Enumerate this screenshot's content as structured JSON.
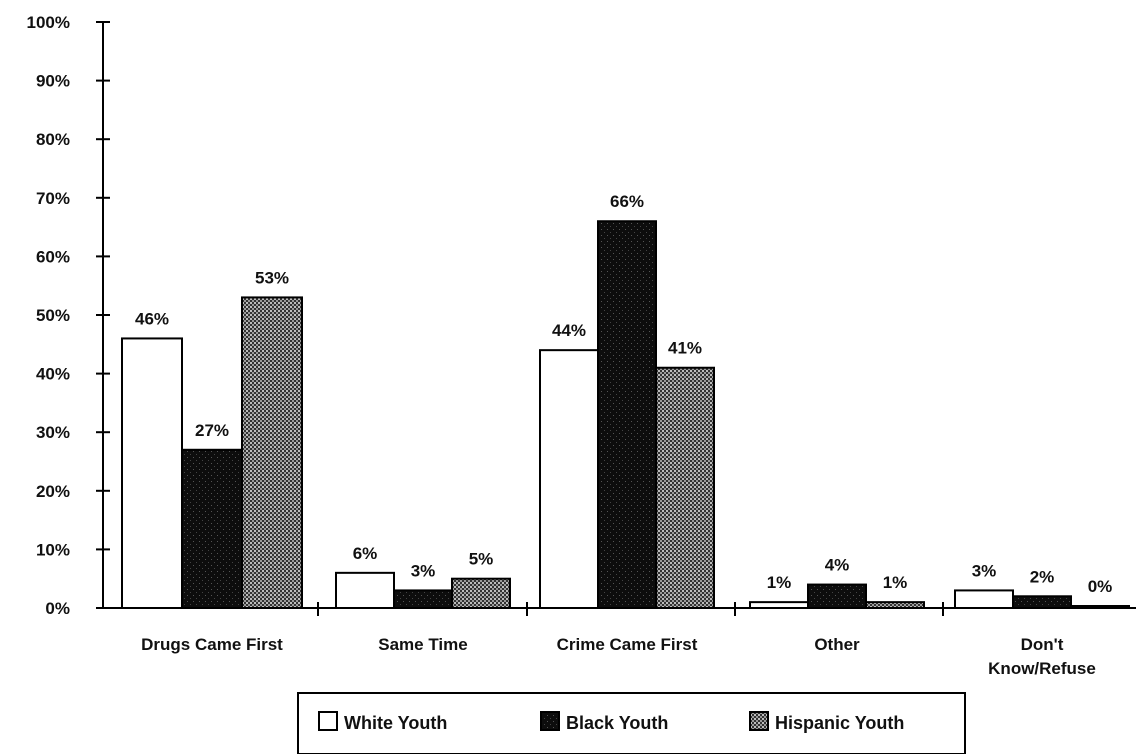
{
  "chart_data": {
    "type": "bar",
    "categories": [
      "Drugs Came First",
      "Same Time",
      "Crime Came First",
      "Other",
      "Don't\nKnow/Refuse"
    ],
    "series": [
      {
        "name": "White Youth",
        "values": [
          46,
          6,
          44,
          1,
          3
        ],
        "color": "#ffffff"
      },
      {
        "name": "Black Youth",
        "values": [
          27,
          3,
          66,
          4,
          2
        ],
        "color": "#111111"
      },
      {
        "name": "Hispanic Youth",
        "values": [
          53,
          5,
          41,
          1,
          0
        ],
        "color": "#777777"
      }
    ],
    "data_labels": [
      [
        "46%",
        "6%",
        "44%",
        "1%",
        "3%"
      ],
      [
        "27%",
        "3%",
        "66%",
        "4%",
        "2%"
      ],
      [
        "53%",
        "5%",
        "41%",
        "1%",
        "0%"
      ]
    ],
    "yticks": [
      "0%",
      "10%",
      "20%",
      "30%",
      "40%",
      "50%",
      "60%",
      "70%",
      "80%",
      "90%",
      "100%"
    ],
    "ylim": [
      0,
      100
    ],
    "title": "",
    "xlabel": "",
    "ylabel": "",
    "grid": false,
    "legend_position": "bottom"
  }
}
